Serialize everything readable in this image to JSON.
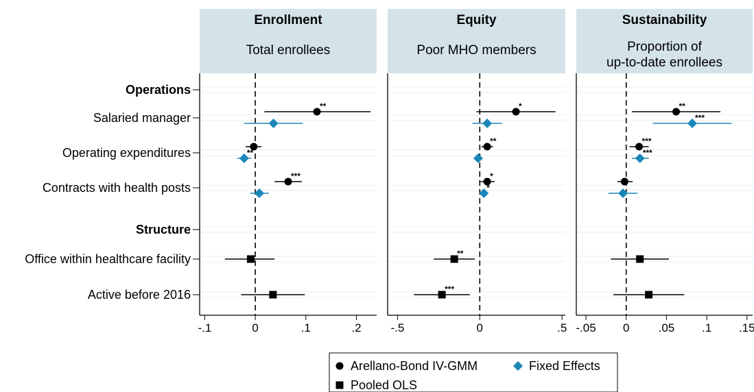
{
  "chart_data": {
    "type": "scatter",
    "subtype": "coefficient-plot",
    "row_labels": [
      {
        "text": "Operations",
        "bold": true
      },
      {
        "text": "Salaried manager",
        "bold": false
      },
      {
        "text": "Operating expenditures",
        "bold": false
      },
      {
        "text": "Contracts with health posts",
        "bold": false
      },
      {
        "text": "Structure",
        "bold": true
      },
      {
        "text": "Office within healthcare facility",
        "bold": false
      },
      {
        "text": "Active before 2016",
        "bold": false
      }
    ],
    "panels": [
      {
        "title": "Enrollment",
        "subtitle": [
          "Total enrollees"
        ],
        "xlim": [
          -0.11,
          0.24
        ],
        "ticks": [
          -0.1,
          0,
          0.1,
          0.2
        ],
        "tick_labels": [
          "-.1",
          "0",
          ".1",
          ".2"
        ],
        "estimates": [
          {
            "row": 1,
            "series": "abg",
            "est": 0.122,
            "lo": 0.018,
            "hi": 0.228,
            "stars": "**"
          },
          {
            "row": 1,
            "series": "fe",
            "est": 0.036,
            "lo": -0.022,
            "hi": 0.094,
            "stars": ""
          },
          {
            "row": 2,
            "series": "abg",
            "est": -0.003,
            "lo": -0.019,
            "hi": 0.012,
            "stars": ""
          },
          {
            "row": 2,
            "series": "fe",
            "est": -0.022,
            "lo": -0.036,
            "hi": -0.008,
            "stars": "**"
          },
          {
            "row": 3,
            "series": "abg",
            "est": 0.065,
            "lo": 0.038,
            "hi": 0.092,
            "stars": "***"
          },
          {
            "row": 3,
            "series": "fe",
            "est": 0.008,
            "lo": -0.01,
            "hi": 0.027,
            "stars": ""
          },
          {
            "row": 5,
            "series": "ols",
            "est": -0.009,
            "lo": -0.06,
            "hi": 0.038,
            "stars": ""
          },
          {
            "row": 6,
            "series": "ols",
            "est": 0.035,
            "lo": -0.028,
            "hi": 0.098,
            "stars": ""
          }
        ]
      },
      {
        "title": "Equity",
        "subtitle": [
          "Poor MHO members"
        ],
        "xlim": [
          -0.56,
          0.52
        ],
        "ticks": [
          -0.5,
          0,
          0.5
        ],
        "tick_labels": [
          "-.5",
          "0",
          ".5"
        ],
        "estimates": [
          {
            "row": 1,
            "series": "abg",
            "est": 0.22,
            "lo": -0.02,
            "hi": 0.46,
            "stars": "*"
          },
          {
            "row": 1,
            "series": "fe",
            "est": 0.045,
            "lo": -0.045,
            "hi": 0.135,
            "stars": ""
          },
          {
            "row": 2,
            "series": "abg",
            "est": 0.045,
            "lo": 0.01,
            "hi": 0.08,
            "stars": "**"
          },
          {
            "row": 2,
            "series": "fe",
            "est": -0.01,
            "lo": -0.03,
            "hi": 0.01,
            "stars": ""
          },
          {
            "row": 3,
            "series": "abg",
            "est": 0.045,
            "lo": 0.005,
            "hi": 0.09,
            "stars": "*"
          },
          {
            "row": 3,
            "series": "fe",
            "est": 0.025,
            "lo": 0.0,
            "hi": 0.05,
            "stars": "*"
          },
          {
            "row": 5,
            "series": "ols",
            "est": -0.155,
            "lo": -0.28,
            "hi": -0.03,
            "stars": "**"
          },
          {
            "row": 6,
            "series": "ols",
            "est": -0.23,
            "lo": -0.4,
            "hi": -0.06,
            "stars": "***"
          }
        ]
      },
      {
        "title": "Sustainability",
        "subtitle": [
          "Proportion of",
          "up-to-date enrollees"
        ],
        "xlim": [
          -0.062,
          0.157
        ],
        "ticks": [
          -0.05,
          0,
          0.05,
          0.1,
          0.15
        ],
        "tick_labels": [
          "-.05",
          "0",
          ".05",
          ".1",
          ".15"
        ],
        "estimates": [
          {
            "row": 1,
            "series": "abg",
            "est": 0.062,
            "lo": 0.007,
            "hi": 0.117,
            "stars": "**"
          },
          {
            "row": 1,
            "series": "fe",
            "est": 0.082,
            "lo": 0.033,
            "hi": 0.131,
            "stars": "***"
          },
          {
            "row": 2,
            "series": "abg",
            "est": 0.016,
            "lo": 0.004,
            "hi": 0.028,
            "stars": "***"
          },
          {
            "row": 2,
            "series": "fe",
            "est": 0.017,
            "lo": 0.007,
            "hi": 0.028,
            "stars": "***"
          },
          {
            "row": 3,
            "series": "abg",
            "est": -0.002,
            "lo": -0.011,
            "hi": 0.008,
            "stars": ""
          },
          {
            "row": 3,
            "series": "fe",
            "est": -0.004,
            "lo": -0.022,
            "hi": 0.014,
            "stars": ""
          },
          {
            "row": 5,
            "series": "ols",
            "est": 0.017,
            "lo": -0.019,
            "hi": 0.053,
            "stars": ""
          },
          {
            "row": 6,
            "series": "ols",
            "est": 0.028,
            "lo": -0.016,
            "hi": 0.072,
            "stars": ""
          }
        ]
      }
    ],
    "series": [
      {
        "id": "abg",
        "name": "Arellano-Bond IV-GMM",
        "marker": "circle",
        "color": "#000000"
      },
      {
        "id": "fe",
        "name": "Fixed Effects",
        "marker": "diamond",
        "color": "#1a87b8"
      },
      {
        "id": "ols",
        "name": "Pooled OLS",
        "marker": "square",
        "color": "#000000"
      }
    ],
    "reference_line": {
      "x": 0,
      "style": "dashed"
    },
    "legend_position": "bottom",
    "grid": true,
    "colors": {
      "header_bg": "#d4e2ea",
      "grid": "#e8eef2",
      "frame": "#000000"
    }
  }
}
